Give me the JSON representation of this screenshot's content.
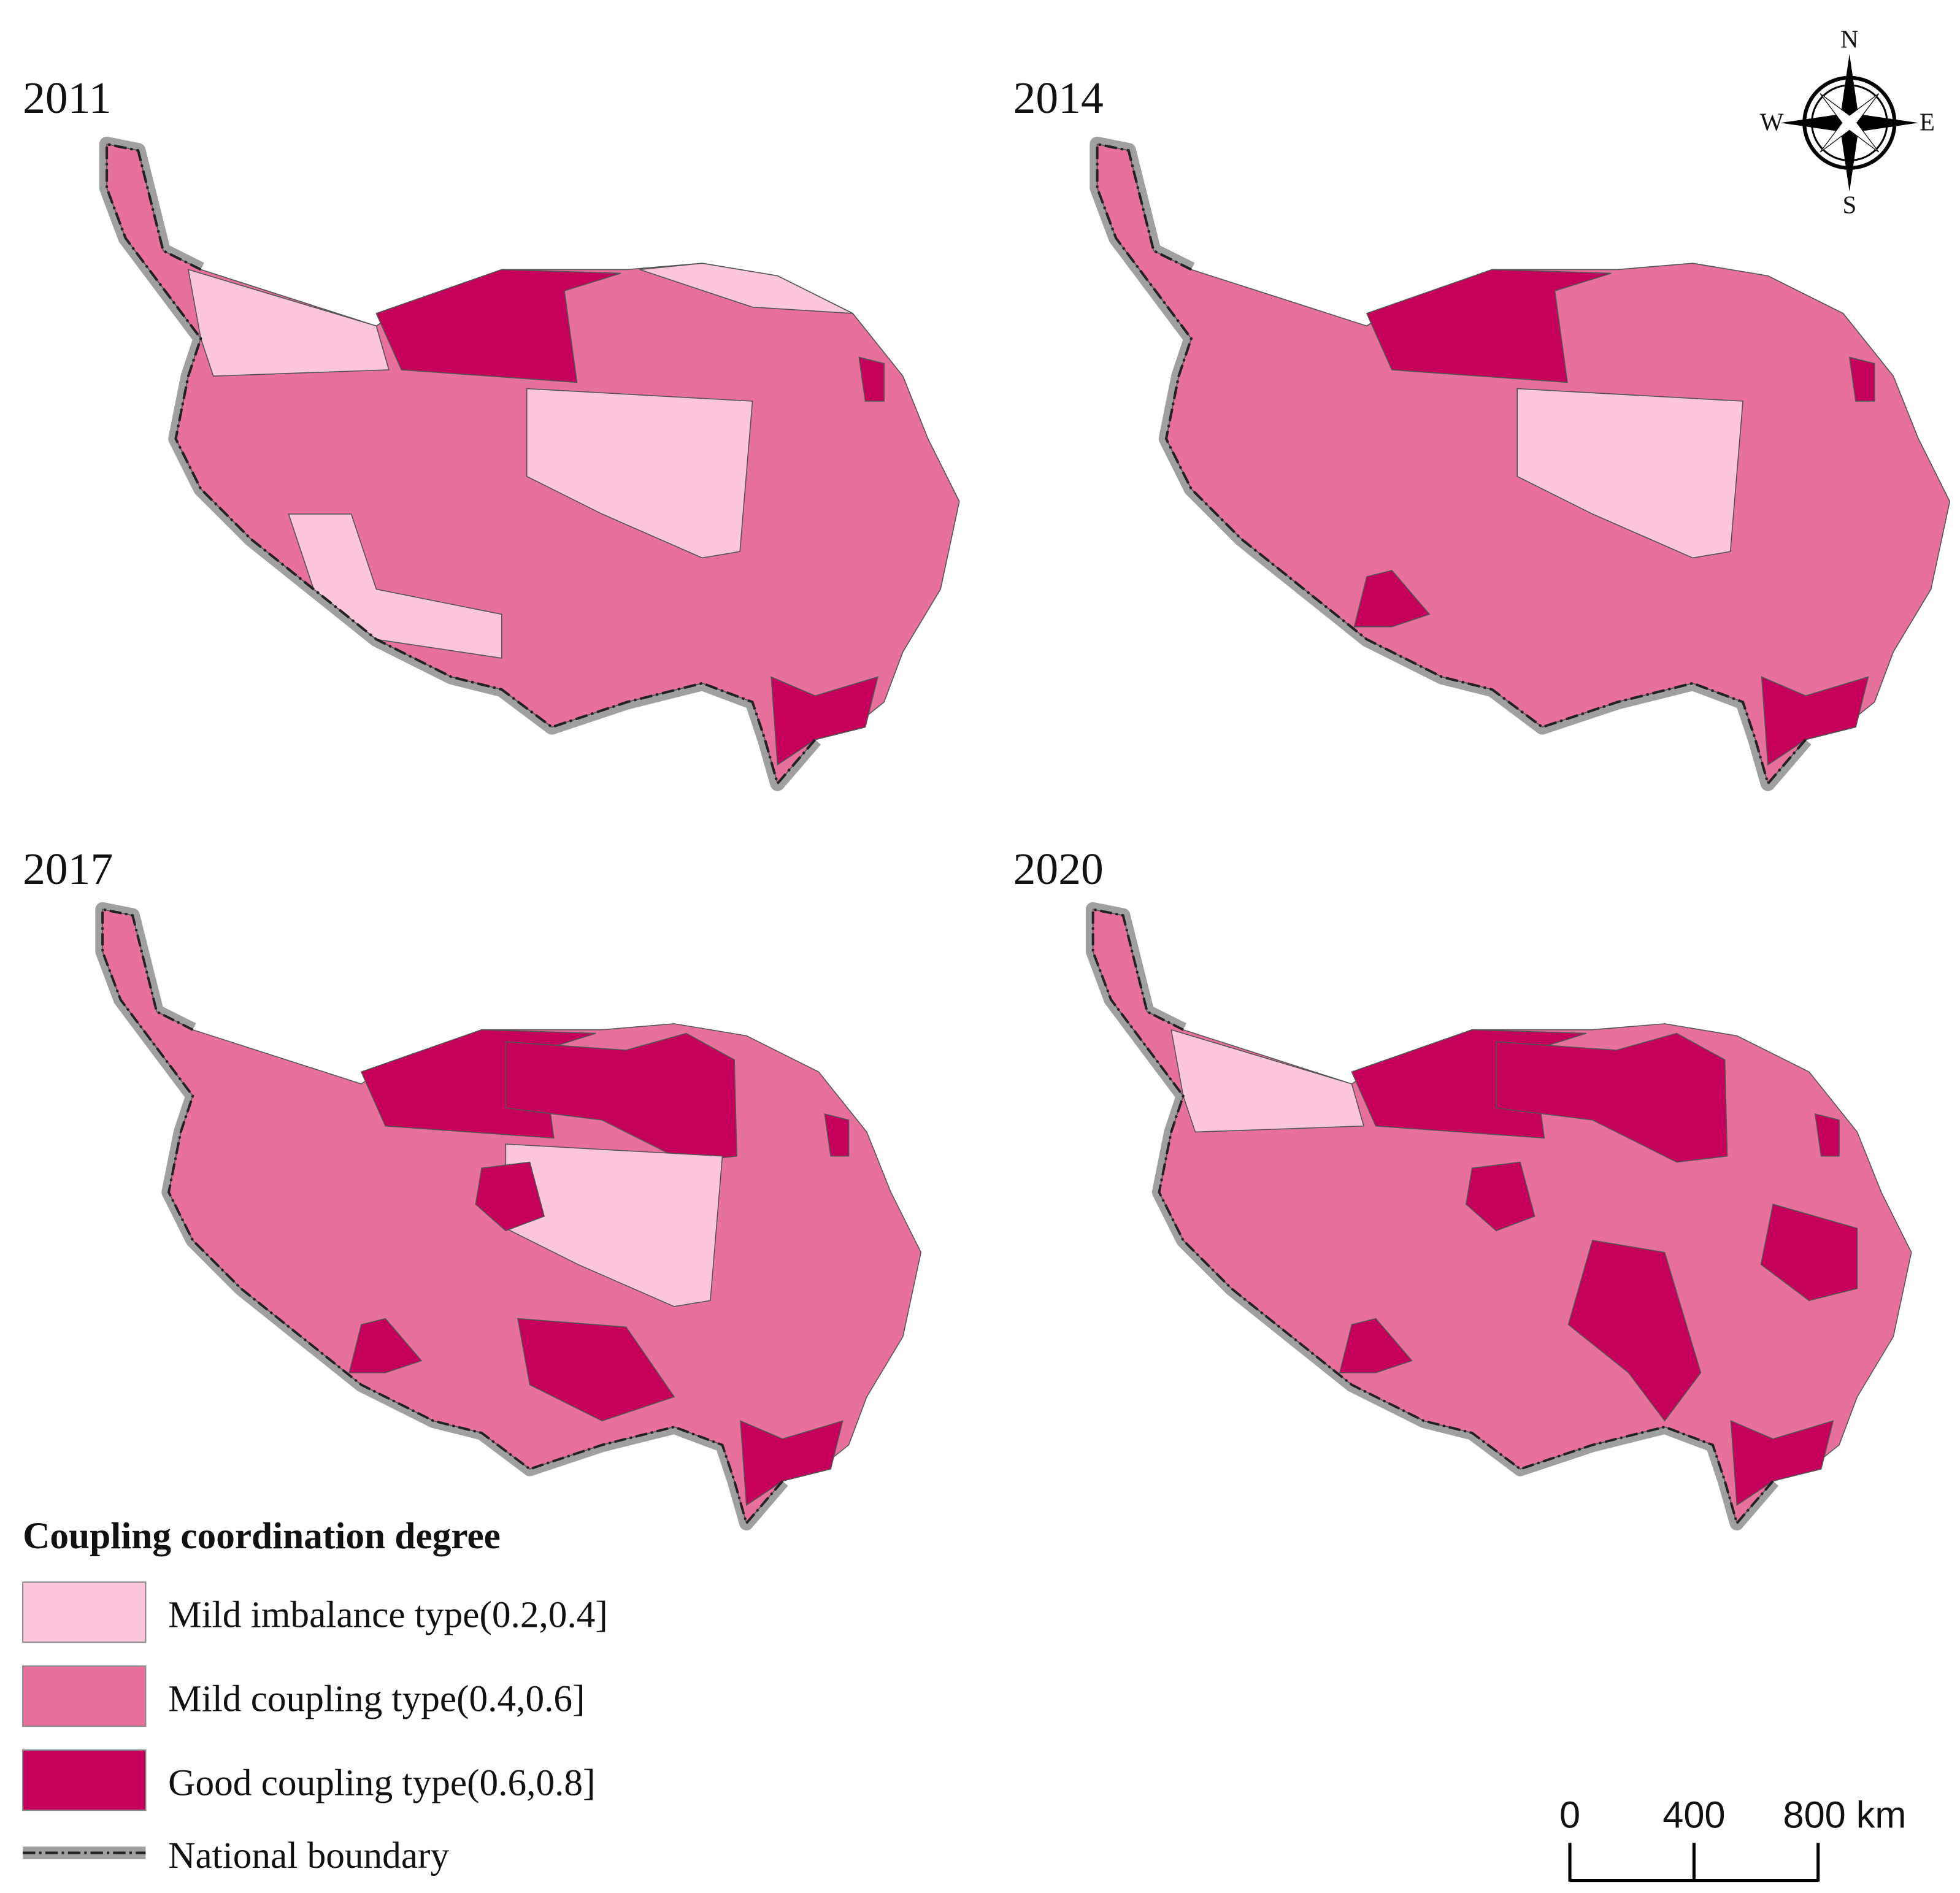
{
  "panels": [
    {
      "title": "2011"
    },
    {
      "title": "2014"
    },
    {
      "title": "2017"
    },
    {
      "title": "2020"
    }
  ],
  "compass": {
    "north": "N",
    "south": "S",
    "west": "W",
    "east": "E"
  },
  "legend": {
    "title": "Coupling coordination degree",
    "items": [
      {
        "label": "Mild imbalance type(0.2,0.4]",
        "color": "#fcc6dc"
      },
      {
        "label": "Mild coupling type(0.4,0.6]",
        "color": "#e8709c"
      },
      {
        "label": "Good coupling type(0.6,0.8]",
        "color": "#c4005a"
      }
    ],
    "boundary": "National boundary"
  },
  "scale_bar": {
    "ticks": [
      0,
      400,
      {
        "value": 800,
        "label": "800 km"
      }
    ]
  }
}
